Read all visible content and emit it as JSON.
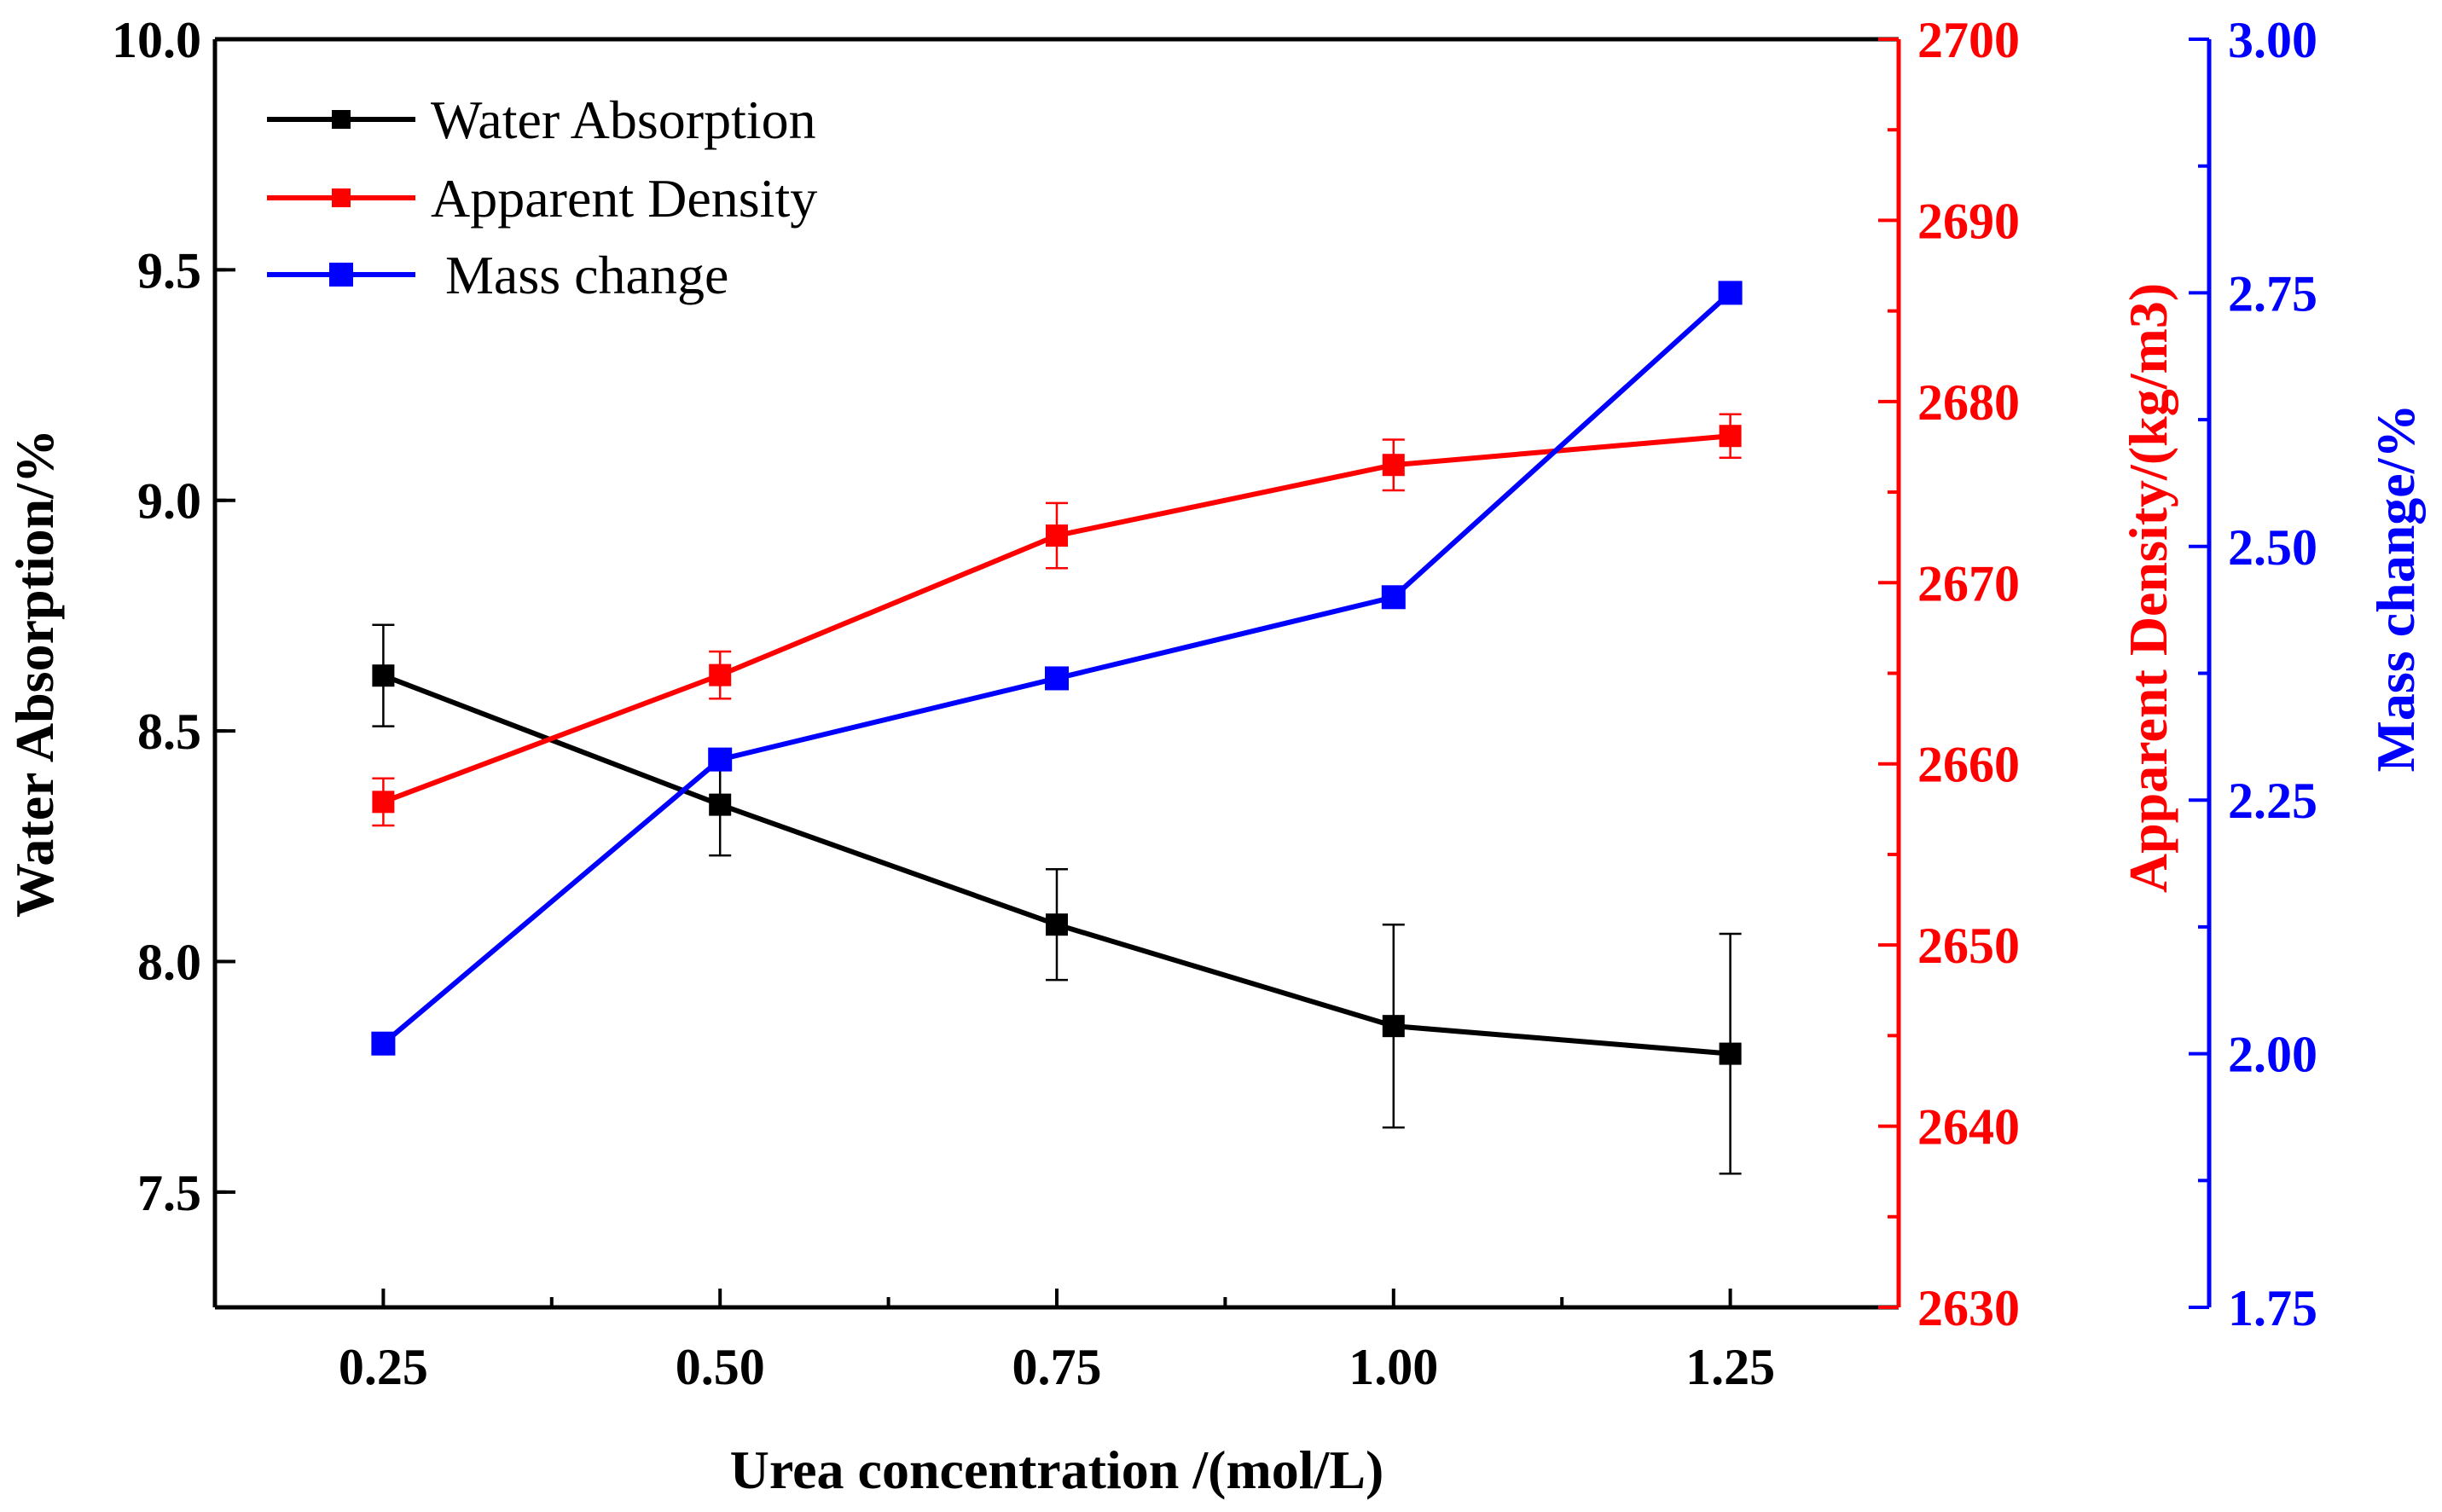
{
  "chart_data": {
    "type": "line",
    "xlabel": "Urea concentration /(mol/L)",
    "x": [
      0.25,
      0.5,
      0.75,
      1.0,
      1.25
    ],
    "x_ticks": [
      "0.25",
      "0.50",
      "0.75",
      "1.00",
      "1.25"
    ],
    "xlim": [
      0.125,
      1.375
    ],
    "axes": {
      "left": {
        "label": "Water Absorption/%",
        "ylim": [
          7.25,
          10.0
        ],
        "ticks": [
          "7.5",
          "8.0",
          "8.5",
          "9.0",
          "9.5",
          "10.0"
        ],
        "color": "#000000"
      },
      "right1": {
        "label": "Apparent Density/(kg/m3)",
        "ylim": [
          2630,
          2700
        ],
        "ticks": [
          "2630",
          "2640",
          "2650",
          "2660",
          "2670",
          "2680",
          "2690",
          "2700"
        ],
        "color": "#ff0000"
      },
      "right2": {
        "label": "Mass change/%",
        "ylim": [
          1.75,
          3.0
        ],
        "ticks": [
          "1.75",
          "2.00",
          "2.25",
          "2.50",
          "2.75",
          "3.00"
        ],
        "color": "#0000ff"
      }
    },
    "series": [
      {
        "name": "Water Absorption",
        "axis": "left",
        "color": "#000000",
        "values": [
          8.62,
          8.34,
          8.08,
          7.86,
          7.8
        ],
        "errors": [
          0.11,
          0.11,
          0.12,
          0.22,
          0.26
        ]
      },
      {
        "name": "Apparent Density",
        "axis": "right1",
        "color": "#ff0000",
        "values": [
          2657.9,
          2664.9,
          2672.6,
          2676.5,
          2678.1
        ],
        "errors": [
          1.3,
          1.3,
          1.8,
          1.4,
          1.2
        ]
      },
      {
        "name": "Mass change",
        "axis": "right2",
        "color": "#0000ff",
        "values": [
          2.01,
          2.29,
          2.37,
          2.45,
          2.75
        ]
      }
    ],
    "legend": "top-left"
  }
}
